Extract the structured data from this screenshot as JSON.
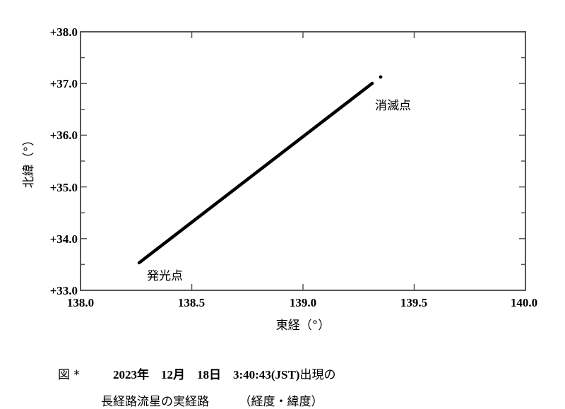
{
  "chart_data": {
    "type": "line",
    "title": "",
    "xlabel": "東経（°）",
    "ylabel": "北緯（°）",
    "xlim": [
      138.0,
      140.0
    ],
    "ylim": [
      33.0,
      38.0
    ],
    "x_ticks": [
      "138.0",
      "138.5",
      "139.0",
      "139.5",
      "140.0"
    ],
    "y_ticks": [
      "+33.0",
      "+34.0",
      "+35.0",
      "+36.0",
      "+37.0",
      "+38.0"
    ],
    "grid": false,
    "series": [
      {
        "name": "meteor-path",
        "points": [
          {
            "lon": 138.26,
            "lat": 33.53
          },
          {
            "lon": 139.31,
            "lat": 37.0
          }
        ]
      },
      {
        "name": "meteor-end-fragment",
        "points": [
          {
            "lon": 139.35,
            "lat": 37.13
          }
        ]
      }
    ],
    "annotations": [
      {
        "text": "発光点",
        "lon": 138.37,
        "lat": 33.25
      },
      {
        "text": "消滅点",
        "lon": 139.47,
        "lat": 36.55
      }
    ]
  },
  "axes": {
    "xlabel": "東経（°）",
    "ylabel": "北緯（°）",
    "x_ticks": [
      "138.0",
      "138.5",
      "139.0",
      "139.5",
      "140.0"
    ],
    "y_ticks": [
      "+33.0",
      "+34.0",
      "+35.0",
      "+36.0",
      "+37.0",
      "+38.0"
    ]
  },
  "annotations": {
    "start": "発光点",
    "end": "消滅点"
  },
  "caption": {
    "label": "図 *",
    "date": "2023年　12月　18日　3:40:43(JST)",
    "date_suffix": "出現の",
    "line2": "長経路流星の実経路　　　（経度・緯度）"
  }
}
